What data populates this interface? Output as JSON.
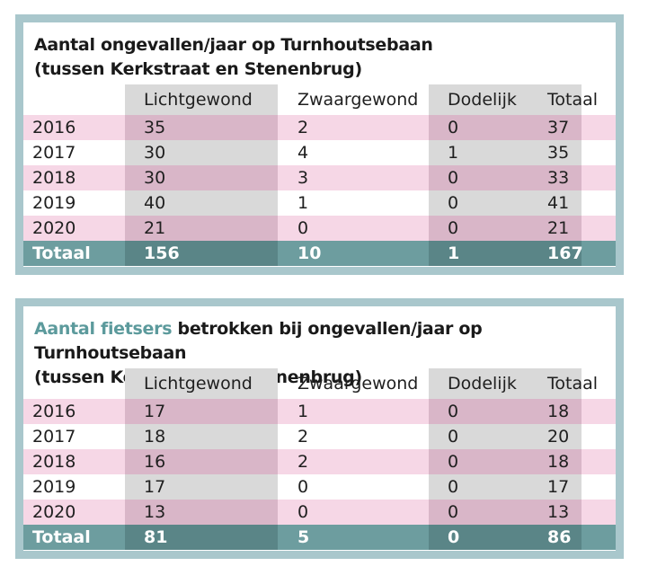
{
  "chart_data": [
    {
      "type": "table",
      "title": "Aantal ongevallen/jaar op Turnhoutsebaan",
      "subtitle": "(tussen Kerkstraat en Stenenbrug)",
      "columns": [
        "",
        "Lichtgewond",
        "Zwaargewond",
        "Dodelijk",
        "Totaal"
      ],
      "rows": [
        {
          "year": "2016",
          "values": [
            "35",
            "2",
            "0",
            "37"
          ]
        },
        {
          "year": "2017",
          "values": [
            "30",
            "4",
            "1",
            "35"
          ]
        },
        {
          "year": "2018",
          "values": [
            "30",
            "3",
            "0",
            "33"
          ]
        },
        {
          "year": "2019",
          "values": [
            "40",
            "1",
            "0",
            "41"
          ]
        },
        {
          "year": "2020",
          "values": [
            "21",
            "0",
            "0",
            "21"
          ]
        }
      ],
      "total": {
        "label": "Totaal",
        "values": [
          "156",
          "10",
          "1",
          "167"
        ]
      }
    },
    {
      "type": "table",
      "title_highlight": "Aantal fietsers",
      "title_rest": " betrokken bij ongevallen/jaar op Turnhoutsebaan",
      "subtitle": "(tussen Kerkstraat en Stenenbrug)",
      "columns": [
        "",
        "Lichtgewond",
        "Zwaargewond",
        "Dodelijk",
        "Totaal"
      ],
      "rows": [
        {
          "year": "2016",
          "values": [
            "17",
            "1",
            "0",
            "18"
          ]
        },
        {
          "year": "2017",
          "values": [
            "18",
            "2",
            "0",
            "20"
          ]
        },
        {
          "year": "2018",
          "values": [
            "16",
            "2",
            "0",
            "18"
          ]
        },
        {
          "year": "2019",
          "values": [
            "17",
            "0",
            "0",
            "17"
          ]
        },
        {
          "year": "2020",
          "values": [
            "13",
            "0",
            "0",
            "13"
          ]
        }
      ],
      "total": {
        "label": "Totaal",
        "values": [
          "81",
          "5",
          "0",
          "86"
        ]
      }
    }
  ],
  "colors": {
    "frame": "#a9c7cc",
    "row_pink": "#f6d7e6",
    "col_grey": "#d9d9d9",
    "col_grey_on_pink": "#d9b6c8",
    "total_row": "#6d9d9f",
    "total_shade": "#5a8587",
    "title_highlight": "#5c9a9c"
  }
}
